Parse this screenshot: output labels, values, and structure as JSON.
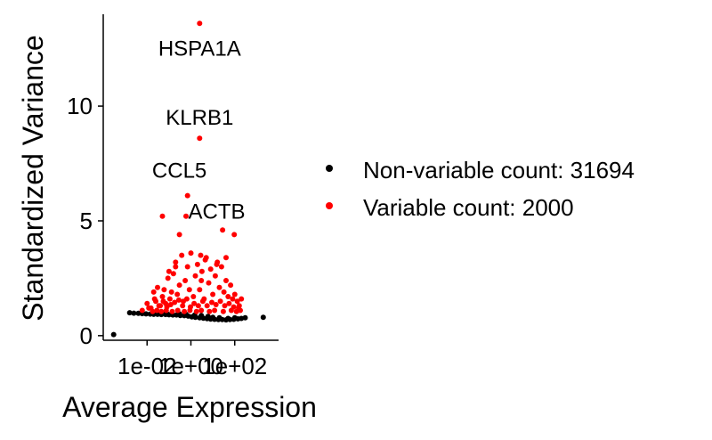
{
  "chart_data": {
    "type": "scatter",
    "title": "",
    "xlabel": "Average Expression",
    "ylabel": "Standardized Variance",
    "x_scale": "log10",
    "xlim": [
      0.0001,
      10000
    ],
    "ylim": [
      -0.2,
      14.0
    ],
    "x_ticks": [
      {
        "value": 0.01,
        "label": "1e-02"
      },
      {
        "value": 1,
        "label": "1e+00"
      },
      {
        "value": 100,
        "label": "1e+02"
      }
    ],
    "y_ticks": [
      {
        "value": 0,
        "label": "0"
      },
      {
        "value": 5,
        "label": "5"
      },
      {
        "value": 10,
        "label": "10"
      }
    ],
    "grid": false,
    "legend_position": "right",
    "series": [
      {
        "name": "Non-variable count: 31694",
        "color": "#000000",
        "points": [
          [
            0.0003,
            0.05
          ],
          [
            0.0016,
            1.0
          ],
          [
            0.0025,
            0.98
          ],
          [
            0.004,
            0.97
          ],
          [
            0.006,
            0.96
          ],
          [
            0.009,
            0.95
          ],
          [
            0.014,
            0.94
          ],
          [
            0.02,
            0.93
          ],
          [
            0.03,
            0.93
          ],
          [
            0.045,
            0.92
          ],
          [
            0.07,
            0.92
          ],
          [
            0.1,
            0.91
          ],
          [
            0.15,
            0.9
          ],
          [
            0.22,
            0.9
          ],
          [
            0.33,
            0.88
          ],
          [
            0.5,
            0.87
          ],
          [
            0.75,
            0.85
          ],
          [
            1.1,
            0.82
          ],
          [
            1.6,
            0.8
          ],
          [
            2.5,
            0.78
          ],
          [
            3.7,
            0.76
          ],
          [
            5.5,
            0.74
          ],
          [
            8,
            0.72
          ],
          [
            12,
            0.71
          ],
          [
            18,
            0.7
          ],
          [
            27,
            0.7
          ],
          [
            40,
            0.69
          ],
          [
            60,
            0.7
          ],
          [
            90,
            0.71
          ],
          [
            140,
            0.73
          ],
          [
            200,
            0.75
          ],
          [
            300,
            0.78
          ],
          [
            2000,
            0.8
          ],
          [
            0.05,
            0.98
          ],
          [
            0.08,
            0.96
          ],
          [
            0.3,
            0.95
          ],
          [
            0.6,
            0.93
          ],
          [
            1.5,
            0.9
          ],
          [
            3,
            0.88
          ],
          [
            6,
            0.84
          ],
          [
            10,
            0.8
          ],
          [
            20,
            0.78
          ],
          [
            50,
            0.75
          ],
          [
            100,
            0.78
          ],
          [
            0.02,
            0.97
          ]
        ]
      },
      {
        "name": "Variable count: 2000",
        "color": "#ff0000",
        "points": [
          [
            0.006,
            1.1
          ],
          [
            0.01,
            1.4
          ],
          [
            0.015,
            1.2
          ],
          [
            0.02,
            1.9
          ],
          [
            0.025,
            1.5
          ],
          [
            0.03,
            2.1
          ],
          [
            0.04,
            1.3
          ],
          [
            0.05,
            1.7
          ],
          [
            0.06,
            2.0
          ],
          [
            0.07,
            1.4
          ],
          [
            0.09,
            2.5
          ],
          [
            0.11,
            1.6
          ],
          [
            0.13,
            1.9
          ],
          [
            0.16,
            2.7
          ],
          [
            0.2,
            3.2
          ],
          [
            0.24,
            1.8
          ],
          [
            0.3,
            2.2
          ],
          [
            0.38,
            3.5
          ],
          [
            0.45,
            1.5
          ],
          [
            0.55,
            2.4
          ],
          [
            0.7,
            3.0
          ],
          [
            0.85,
            2.0
          ],
          [
            1.0,
            3.6
          ],
          [
            1.3,
            1.7
          ],
          [
            1.6,
            2.6
          ],
          [
            2.0,
            3.1
          ],
          [
            2.5,
            2.0
          ],
          [
            3.2,
            2.8
          ],
          [
            4,
            1.6
          ],
          [
            5,
            3.4
          ],
          [
            6.5,
            2.3
          ],
          [
            8,
            2.9
          ],
          [
            10,
            1.8
          ],
          [
            13,
            2.6
          ],
          [
            16,
            3.2
          ],
          [
            20,
            2.1
          ],
          [
            25,
            3.0
          ],
          [
            32,
            1.9
          ],
          [
            40,
            2.4
          ],
          [
            50,
            1.7
          ],
          [
            65,
            2.2
          ],
          [
            80,
            1.6
          ],
          [
            100,
            1.8
          ],
          [
            130,
            1.5
          ],
          [
            160,
            1.3
          ],
          [
            200,
            1.6
          ],
          [
            0.012,
            1.2
          ],
          [
            0.022,
            1.6
          ],
          [
            0.035,
            1.3
          ],
          [
            0.055,
            1.5
          ],
          [
            0.08,
            1.25
          ],
          [
            0.12,
            1.35
          ],
          [
            0.18,
            1.45
          ],
          [
            0.28,
            1.55
          ],
          [
            0.42,
            1.3
          ],
          [
            0.65,
            1.6
          ],
          [
            0.95,
            1.25
          ],
          [
            1.4,
            1.4
          ],
          [
            2.2,
            1.3
          ],
          [
            3.5,
            1.5
          ],
          [
            5.5,
            1.3
          ],
          [
            9,
            1.45
          ],
          [
            14,
            1.35
          ],
          [
            22,
            1.5
          ],
          [
            35,
            1.3
          ],
          [
            55,
            1.4
          ],
          [
            90,
            1.25
          ],
          [
            150,
            1.2
          ],
          [
            0.018,
            1.05
          ],
          [
            0.028,
            1.1
          ],
          [
            0.045,
            1.05
          ],
          [
            0.075,
            1.1
          ],
          [
            0.14,
            1.05
          ],
          [
            0.25,
            1.1
          ],
          [
            0.5,
            1.05
          ],
          [
            0.9,
            1.1
          ],
          [
            1.8,
            1.05
          ],
          [
            3,
            1.1
          ],
          [
            7,
            1.05
          ],
          [
            12,
            1.1
          ],
          [
            30,
            1.05
          ],
          [
            70,
            1.1
          ],
          [
            120,
            1.05
          ],
          [
            180,
            1.1
          ],
          [
            0.3,
            4.4
          ],
          [
            0.6,
            5.2
          ],
          [
            2.8,
            3.5
          ],
          [
            4.5,
            3.3
          ],
          [
            28,
            4.6
          ],
          [
            95,
            4.4
          ],
          [
            0.1,
            2.8
          ],
          [
            0.2,
            3.0
          ],
          [
            3.0,
            2.4
          ],
          [
            15,
            3.1
          ],
          [
            40,
            3.4
          ]
        ]
      }
    ],
    "annotations": [
      {
        "label": "HSPA1A",
        "x": 2.5,
        "y": 13.6,
        "label_x": 2.5,
        "label_y": 12.5
      },
      {
        "label": "KLRB1",
        "x": 2.5,
        "y": 8.6,
        "label_x": 2.5,
        "label_y": 9.5
      },
      {
        "label": "CCL5",
        "x": 0.7,
        "y": 6.1,
        "label_x": 0.3,
        "label_y": 7.2
      },
      {
        "label": "ACTB",
        "x": 0.05,
        "y": 5.2,
        "label_x": 15,
        "label_y": 5.4
      }
    ]
  }
}
